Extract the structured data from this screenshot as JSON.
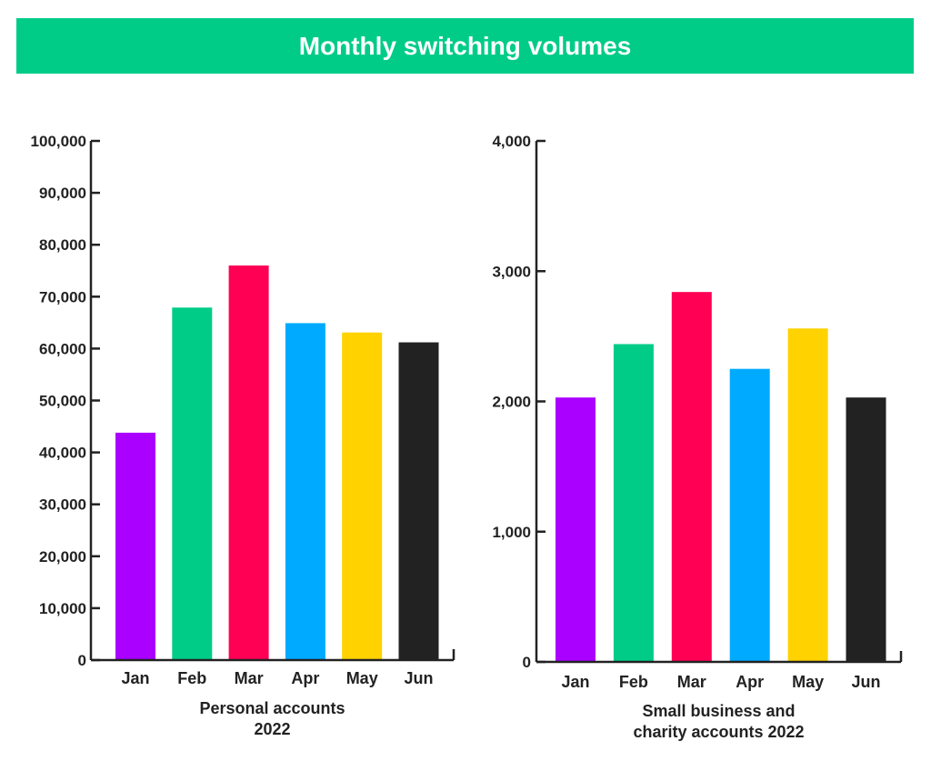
{
  "banner": {
    "title": "Monthly switching volumes",
    "color": "#00CC88"
  },
  "chart_data": [
    {
      "type": "bar",
      "categories": [
        "Jan",
        "Feb",
        "Mar",
        "Apr",
        "May",
        "Jun"
      ],
      "values": [
        43800,
        67900,
        76000,
        64900,
        63100,
        61200
      ],
      "colors": [
        "#AA00FF",
        "#00CC88",
        "#FF0055",
        "#00AAFF",
        "#FFD200",
        "#222222"
      ],
      "ylim": [
        0,
        100000
      ],
      "yticks": [
        0,
        10000,
        20000,
        30000,
        40000,
        50000,
        60000,
        70000,
        80000,
        90000,
        100000
      ],
      "ytick_labels": [
        "0",
        "10,000",
        "20,000",
        "30,000",
        "40,000",
        "50,000",
        "60,000",
        "70,000",
        "80,000",
        "90,000",
        "100,000"
      ],
      "xlabel_lines": [
        "Personal accounts",
        "2022"
      ],
      "title": "",
      "ylabel": "",
      "grid": false
    },
    {
      "type": "bar",
      "categories": [
        "Jan",
        "Feb",
        "Mar",
        "Apr",
        "May",
        "Jun"
      ],
      "values": [
        2030,
        2440,
        2840,
        2250,
        2560,
        2030
      ],
      "colors": [
        "#AA00FF",
        "#00CC88",
        "#FF0055",
        "#00AAFF",
        "#FFD200",
        "#222222"
      ],
      "ylim": [
        0,
        4000
      ],
      "yticks": [
        0,
        1000,
        2000,
        3000,
        4000
      ],
      "ytick_labels": [
        "0",
        "1,000",
        "2,000",
        "3,000",
        "4,000"
      ],
      "xlabel_lines": [
        "Small business and",
        "charity accounts 2022"
      ],
      "title": "",
      "ylabel": "",
      "grid": false
    }
  ]
}
